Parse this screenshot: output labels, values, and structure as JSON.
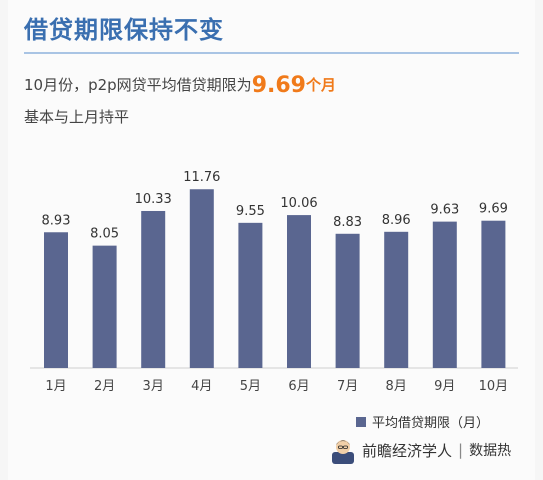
{
  "header": {
    "title": "借贷期限保持不变"
  },
  "summary": {
    "prefix": "10月份，p2p网贷平均借贷期限为",
    "value": "9.69",
    "unit": "个月",
    "line2": "基本与上月持平"
  },
  "chart_data": {
    "type": "bar",
    "categories": [
      "1月",
      "2月",
      "3月",
      "4月",
      "5月",
      "6月",
      "7月",
      "8月",
      "9月",
      "10月"
    ],
    "series": [
      {
        "name": "平均借贷期限（月）",
        "values": [
          8.93,
          8.05,
          10.33,
          11.76,
          9.55,
          10.06,
          8.83,
          8.96,
          9.63,
          9.69
        ]
      }
    ],
    "ylim": [
      0,
      12.5
    ],
    "bar_color": "#5a6690",
    "axis_color": "#cfcfcf",
    "grid": false,
    "legend_position": "bottom-right"
  },
  "footer": {
    "brand_left": "前瞻经济学人",
    "separator": "|",
    "brand_right": "数据热"
  },
  "colors": {
    "title": "#3a6fb0",
    "highlight": "#f07a1a",
    "bar": "#5a6690"
  }
}
